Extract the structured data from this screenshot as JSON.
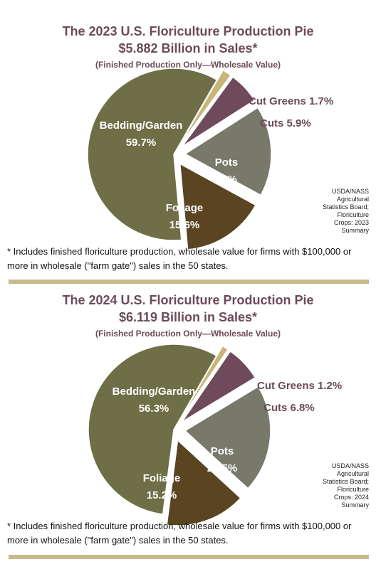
{
  "chart_data": [
    {
      "type": "pie",
      "title": "The 2023 U.S. Floriculture Production Pie",
      "subtitle": "$5.882 Billion in Sales*",
      "note": "(Finished Production Only—Wholesale Value)",
      "slices": [
        {
          "label": "Bedding/Garden",
          "value": 59.7,
          "display": "59.7%",
          "color": "#6e6e47"
        },
        {
          "label": "Cut Greens",
          "value": 1.7,
          "display": "1.7%",
          "color": "#c9b576"
        },
        {
          "label": "Cuts",
          "value": 5.9,
          "display": "5.9%",
          "color": "#6e4a5b"
        },
        {
          "label": "Pots",
          "value": 17,
          "display": "17%",
          "color": "#78786b"
        },
        {
          "label": "Foliage",
          "value": 15.6,
          "display": "15.6%",
          "color": "#5a4421"
        }
      ],
      "source": [
        "USDA/NASS",
        "Agricultural",
        "Statistics Board;",
        "Floriculture",
        "Crops: 2023",
        "Summary"
      ]
    },
    {
      "type": "pie",
      "title": "The 2024 U.S. Floriculture Production Pie",
      "subtitle": "$6.119 Billion in Sales*",
      "note": "(Finished Production Only—Wholesale Value)",
      "slices": [
        {
          "label": "Bedding/Garden",
          "value": 56.3,
          "display": "56.3%",
          "color": "#6e6e47"
        },
        {
          "label": "Cut Greens",
          "value": 1.2,
          "display": "1.2%",
          "color": "#c9b576"
        },
        {
          "label": "Cuts",
          "value": 6.8,
          "display": "6.8%",
          "color": "#6e4a5b"
        },
        {
          "label": "Pots",
          "value": 20.5,
          "display": "20.5%",
          "color": "#78786b"
        },
        {
          "label": "Foliage",
          "value": 15.2,
          "display": "15.2%",
          "color": "#5a4421"
        }
      ],
      "source": [
        "USDA/NASS",
        "Agricultural",
        "Statistics Board;",
        "Floriculture",
        "Crops: 2024",
        "Summary"
      ]
    }
  ],
  "footnote_1": "* Includes finished floriculture production, wholesale value for firms with $100,000 or more in wholesale (\"farm gate\") sales in the 50 states.",
  "footnote_2": "* Includes finished floriculture production, wholesale value for firms with $100,000 or more in wholesale (\"farm gate\") sales in the 50 states."
}
